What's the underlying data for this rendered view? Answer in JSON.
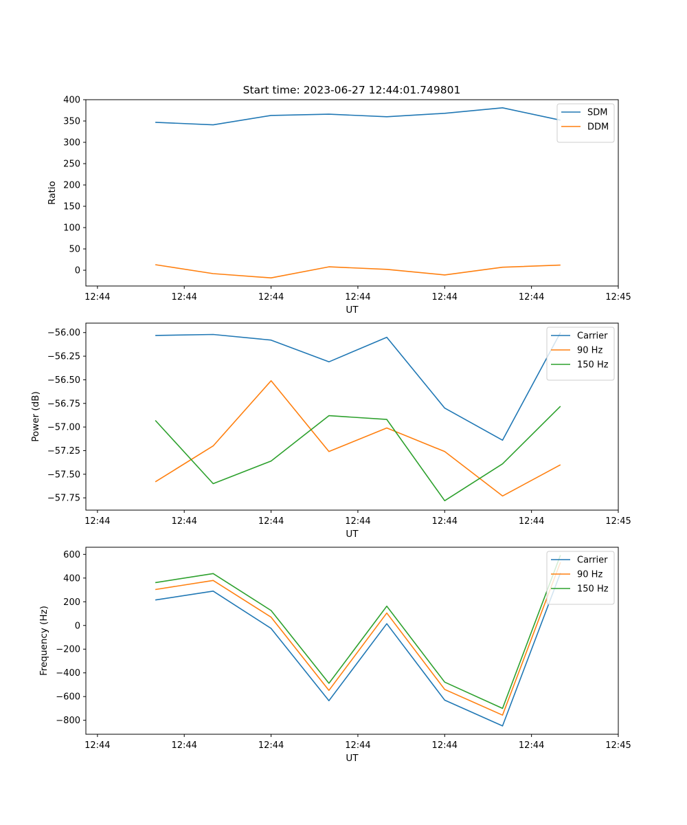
{
  "figure_title": "Start time: 2023-06-27 12:44:01.749801",
  "colors": {
    "blue": "#1f77b4",
    "orange": "#ff7f0e",
    "green": "#2ca02c"
  },
  "chart_data": [
    {
      "type": "line",
      "title": "Start time: 2023-06-27 12:44:01.749801",
      "xlabel": "UT",
      "ylabel": "Ratio",
      "x": [
        2,
        3,
        4,
        5,
        6,
        7,
        8,
        9
      ],
      "xlim": [
        0.8,
        10.0
      ],
      "x_ticks": [
        1,
        2.5,
        4,
        5.5,
        7,
        8.5,
        10
      ],
      "x_tick_labels": [
        "12:44",
        "12:44",
        "12:44",
        "12:44",
        "12:44",
        "12:44",
        "12:45"
      ],
      "ylim": [
        -37,
        400
      ],
      "y_ticks": [
        0,
        50,
        100,
        150,
        200,
        250,
        300,
        350,
        400
      ],
      "y_tick_labels": [
        "0",
        "50",
        "100",
        "150",
        "200",
        "250",
        "300",
        "350",
        "400"
      ],
      "legend": "top-right",
      "series": [
        {
          "name": "SDM",
          "color": "#1f77b4",
          "values": [
            347,
            341,
            363,
            366,
            360,
            368,
            381,
            352
          ]
        },
        {
          "name": "DDM",
          "color": "#ff7f0e",
          "values": [
            13,
            -8,
            -18,
            8,
            2,
            -11,
            7,
            12
          ]
        }
      ]
    },
    {
      "type": "line",
      "xlabel": "UT",
      "ylabel": "Power (dB)",
      "x": [
        2,
        3,
        4,
        5,
        6,
        7,
        8,
        9
      ],
      "xlim": [
        0.8,
        10.0
      ],
      "x_ticks": [
        1,
        2.5,
        4,
        5.5,
        7,
        8.5,
        10
      ],
      "x_tick_labels": [
        "12:44",
        "12:44",
        "12:44",
        "12:44",
        "12:44",
        "12:44",
        "12:45"
      ],
      "ylim": [
        -57.88,
        -55.9
      ],
      "y_ticks": [
        -56.0,
        -56.25,
        -56.5,
        -56.75,
        -57.0,
        -57.25,
        -57.5,
        -57.75
      ],
      "y_tick_labels": [
        "−56.00",
        "−56.25",
        "−56.50",
        "−56.75",
        "−57.00",
        "−57.25",
        "−57.50",
        "−57.75"
      ],
      "legend": "top-right",
      "series": [
        {
          "name": "Carrier",
          "color": "#1f77b4",
          "values": [
            -56.03,
            -56.02,
            -56.08,
            -56.31,
            -56.05,
            -56.8,
            -57.14,
            -56.0
          ]
        },
        {
          "name": "90 Hz",
          "color": "#ff7f0e",
          "values": [
            -57.58,
            -57.2,
            -56.51,
            -57.26,
            -57.01,
            -57.26,
            -57.73,
            -57.4
          ]
        },
        {
          "name": "150 Hz",
          "color": "#2ca02c",
          "values": [
            -56.93,
            -57.6,
            -57.36,
            -56.88,
            -56.92,
            -57.78,
            -57.39,
            -56.78
          ]
        }
      ]
    },
    {
      "type": "line",
      "xlabel": "UT",
      "ylabel": "Frequency (Hz)",
      "x": [
        2,
        3,
        4,
        5,
        6,
        7,
        8,
        9
      ],
      "xlim": [
        0.8,
        10.0
      ],
      "x_ticks": [
        1,
        2.5,
        4,
        5.5,
        7,
        8.5,
        10
      ],
      "x_tick_labels": [
        "12:44",
        "12:44",
        "12:44",
        "12:44",
        "12:44",
        "12:44",
        "12:45"
      ],
      "ylim": [
        -918,
        660
      ],
      "y_ticks": [
        600,
        400,
        200,
        0,
        -200,
        -400,
        -600,
        -800
      ],
      "y_tick_labels": [
        "600",
        "400",
        "200",
        "0",
        "−200",
        "−400",
        "−600",
        "−800"
      ],
      "legend": "top-right",
      "series": [
        {
          "name": "Carrier",
          "color": "#1f77b4",
          "values": [
            215,
            290,
            -25,
            -635,
            15,
            -630,
            -848,
            443
          ]
        },
        {
          "name": "90 Hz",
          "color": "#ff7f0e",
          "values": [
            303,
            380,
            70,
            -548,
            105,
            -540,
            -757,
            533
          ]
        },
        {
          "name": "150 Hz",
          "color": "#2ca02c",
          "values": [
            362,
            438,
            126,
            -488,
            163,
            -478,
            -700,
            593
          ]
        }
      ]
    }
  ]
}
